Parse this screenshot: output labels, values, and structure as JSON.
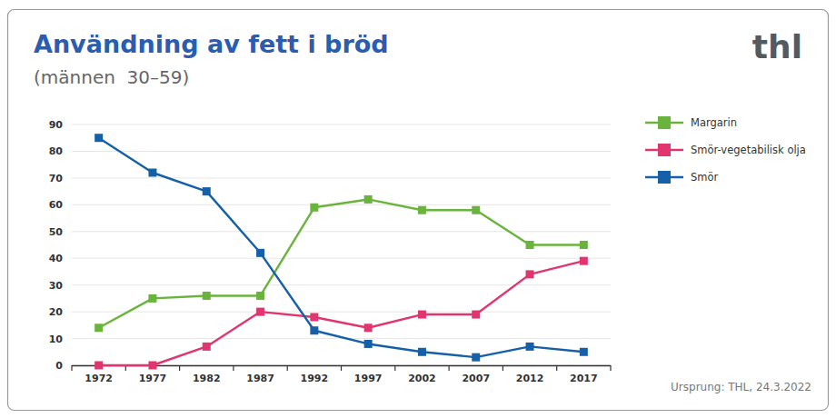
{
  "chart_data": {
    "type": "line",
    "title": "Användning av fett i bröd",
    "subtitle": "(männen  30–59)",
    "annotations": [
      "thl",
      "Ursprung: THL, 24.3.2022"
    ],
    "categories": [
      "1972",
      "1977",
      "1982",
      "1987",
      "1992",
      "1997",
      "2002",
      "2007",
      "2012",
      "2017"
    ],
    "series": [
      {
        "name": "Margarin",
        "color": "#6ab43e",
        "marker": "square",
        "values": [
          14,
          25,
          26,
          26,
          59,
          62,
          58,
          58,
          45,
          45
        ]
      },
      {
        "name": "Smör-vegetabilisk olja",
        "color": "#e0356f",
        "marker": "square",
        "values": [
          0,
          0,
          7,
          20,
          18,
          14,
          19,
          19,
          34,
          39
        ]
      },
      {
        "name": "Smör",
        "color": "#1560a8",
        "marker": "square",
        "values": [
          85,
          72,
          65,
          42,
          13,
          8,
          5,
          3,
          7,
          5
        ]
      }
    ],
    "ylim": [
      0,
      90
    ],
    "yticks": [
      0,
      10,
      20,
      30,
      40,
      50,
      60,
      70,
      80,
      90
    ],
    "grid": true,
    "legend": "right"
  }
}
